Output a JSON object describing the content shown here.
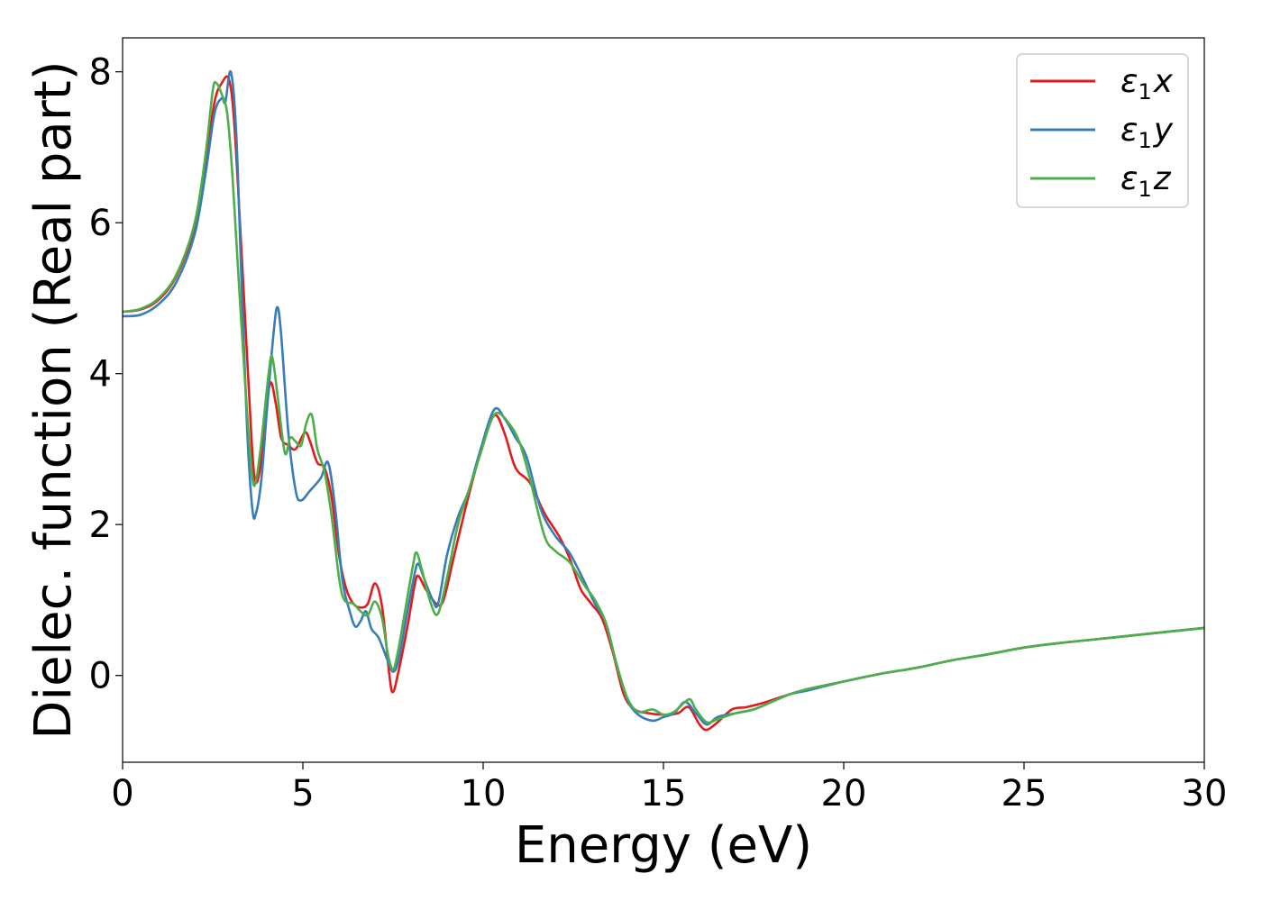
{
  "chart_data": {
    "type": "line",
    "xlabel": "Energy (eV)",
    "ylabel": "Dielec. function (Real part)",
    "xlim": [
      0,
      30
    ],
    "ylim": [
      -1.15,
      8.45
    ],
    "xticks": [
      0,
      5,
      10,
      15,
      20,
      25,
      30
    ],
    "yticks": [
      0,
      2,
      4,
      6,
      8
    ],
    "grid": false,
    "legend_position": "top-right",
    "series": [
      {
        "name": "ε1x",
        "legend_symbol": "ε",
        "legend_sub": "1",
        "legend_axis": "x",
        "color": "#e41a1c",
        "points": [
          [
            0,
            4.82
          ],
          [
            0.5,
            4.85
          ],
          [
            1,
            4.98
          ],
          [
            1.5,
            5.3
          ],
          [
            2,
            5.95
          ],
          [
            2.3,
            6.8
          ],
          [
            2.55,
            7.6
          ],
          [
            2.75,
            7.85
          ],
          [
            2.95,
            7.9
          ],
          [
            3.1,
            7.3
          ],
          [
            3.3,
            5.6
          ],
          [
            3.5,
            3.8
          ],
          [
            3.65,
            2.65
          ],
          [
            3.8,
            2.7
          ],
          [
            3.95,
            3.4
          ],
          [
            4.1,
            3.88
          ],
          [
            4.25,
            3.6
          ],
          [
            4.4,
            3.15
          ],
          [
            4.6,
            3.05
          ],
          [
            4.8,
            3.0
          ],
          [
            5.05,
            3.22
          ],
          [
            5.2,
            3.1
          ],
          [
            5.4,
            2.82
          ],
          [
            5.6,
            2.75
          ],
          [
            5.8,
            2.35
          ],
          [
            6.0,
            1.6
          ],
          [
            6.2,
            1.15
          ],
          [
            6.4,
            0.95
          ],
          [
            6.6,
            0.9
          ],
          [
            6.8,
            0.95
          ],
          [
            7.0,
            1.22
          ],
          [
            7.2,
            0.9
          ],
          [
            7.4,
            0.0
          ],
          [
            7.5,
            -0.22
          ],
          [
            7.65,
            0.05
          ],
          [
            7.9,
            0.65
          ],
          [
            8.1,
            1.2
          ],
          [
            8.2,
            1.32
          ],
          [
            8.4,
            1.15
          ],
          [
            8.7,
            0.95
          ],
          [
            8.9,
            1.0
          ],
          [
            9.2,
            1.6
          ],
          [
            9.5,
            2.2
          ],
          [
            9.8,
            2.75
          ],
          [
            10.1,
            3.25
          ],
          [
            10.35,
            3.45
          ],
          [
            10.6,
            3.2
          ],
          [
            10.9,
            2.75
          ],
          [
            11.3,
            2.55
          ],
          [
            11.7,
            2.15
          ],
          [
            12.1,
            1.85
          ],
          [
            12.4,
            1.55
          ],
          [
            12.7,
            1.15
          ],
          [
            13.0,
            0.95
          ],
          [
            13.3,
            0.75
          ],
          [
            13.6,
            0.3
          ],
          [
            13.9,
            -0.25
          ],
          [
            14.2,
            -0.45
          ],
          [
            14.6,
            -0.5
          ],
          [
            15.0,
            -0.52
          ],
          [
            15.4,
            -0.5
          ],
          [
            15.7,
            -0.42
          ],
          [
            16.0,
            -0.65
          ],
          [
            16.2,
            -0.72
          ],
          [
            16.5,
            -0.62
          ],
          [
            16.9,
            -0.45
          ],
          [
            17.3,
            -0.42
          ],
          [
            17.8,
            -0.36
          ],
          [
            18.3,
            -0.28
          ],
          [
            19.0,
            -0.18
          ],
          [
            20,
            -0.08
          ],
          [
            21,
            0.02
          ],
          [
            22,
            0.1
          ],
          [
            23,
            0.2
          ],
          [
            24,
            0.28
          ],
          [
            25,
            0.37
          ],
          [
            26,
            0.43
          ],
          [
            27,
            0.48
          ],
          [
            28,
            0.53
          ],
          [
            29,
            0.58
          ],
          [
            30,
            0.63
          ]
        ]
      },
      {
        "name": "ε1y",
        "legend_symbol": "ε",
        "legend_sub": "1",
        "legend_axis": "y",
        "color": "#377eb8",
        "points": [
          [
            0,
            4.76
          ],
          [
            0.5,
            4.78
          ],
          [
            1,
            4.92
          ],
          [
            1.5,
            5.22
          ],
          [
            2,
            5.85
          ],
          [
            2.3,
            6.65
          ],
          [
            2.55,
            7.45
          ],
          [
            2.75,
            7.65
          ],
          [
            2.85,
            7.6
          ],
          [
            3.0,
            8.0
          ],
          [
            3.15,
            7.2
          ],
          [
            3.3,
            5.2
          ],
          [
            3.45,
            3.3
          ],
          [
            3.6,
            2.2
          ],
          [
            3.7,
            2.15
          ],
          [
            3.85,
            2.6
          ],
          [
            4.0,
            3.5
          ],
          [
            4.2,
            4.6
          ],
          [
            4.3,
            4.88
          ],
          [
            4.4,
            4.5
          ],
          [
            4.6,
            3.2
          ],
          [
            4.8,
            2.45
          ],
          [
            4.95,
            2.32
          ],
          [
            5.2,
            2.45
          ],
          [
            5.5,
            2.62
          ],
          [
            5.7,
            2.82
          ],
          [
            5.9,
            2.2
          ],
          [
            6.1,
            1.25
          ],
          [
            6.3,
            0.85
          ],
          [
            6.45,
            0.65
          ],
          [
            6.6,
            0.72
          ],
          [
            6.75,
            0.85
          ],
          [
            6.9,
            0.62
          ],
          [
            7.1,
            0.5
          ],
          [
            7.35,
            0.2
          ],
          [
            7.5,
            0.05
          ],
          [
            7.65,
            0.2
          ],
          [
            7.9,
            0.85
          ],
          [
            8.1,
            1.35
          ],
          [
            8.2,
            1.48
          ],
          [
            8.35,
            1.3
          ],
          [
            8.6,
            1.0
          ],
          [
            8.75,
            0.95
          ],
          [
            9.0,
            1.6
          ],
          [
            9.3,
            2.1
          ],
          [
            9.6,
            2.45
          ],
          [
            9.9,
            2.95
          ],
          [
            10.3,
            3.52
          ],
          [
            10.6,
            3.4
          ],
          [
            10.9,
            3.15
          ],
          [
            11.2,
            2.9
          ],
          [
            11.6,
            2.2
          ],
          [
            12.0,
            1.85
          ],
          [
            12.4,
            1.62
          ],
          [
            12.8,
            1.25
          ],
          [
            13.1,
            0.95
          ],
          [
            13.4,
            0.7
          ],
          [
            13.7,
            0.15
          ],
          [
            14.0,
            -0.32
          ],
          [
            14.3,
            -0.52
          ],
          [
            14.7,
            -0.6
          ],
          [
            15.0,
            -0.55
          ],
          [
            15.3,
            -0.5
          ],
          [
            15.6,
            -0.35
          ],
          [
            15.9,
            -0.5
          ],
          [
            16.2,
            -0.65
          ],
          [
            16.5,
            -0.55
          ],
          [
            17.0,
            -0.5
          ],
          [
            17.5,
            -0.45
          ],
          [
            18.0,
            -0.35
          ],
          [
            18.5,
            -0.25
          ],
          [
            19,
            -0.2
          ],
          [
            20,
            -0.08
          ],
          [
            21,
            0.02
          ],
          [
            22,
            0.1
          ],
          [
            23,
            0.2
          ],
          [
            24,
            0.28
          ],
          [
            25,
            0.37
          ],
          [
            26,
            0.43
          ],
          [
            27,
            0.48
          ],
          [
            28,
            0.53
          ],
          [
            29,
            0.58
          ],
          [
            30,
            0.63
          ]
        ]
      },
      {
        "name": "ε1z",
        "legend_symbol": "ε",
        "legend_sub": "1",
        "legend_axis": "z",
        "color": "#4daf4a",
        "points": [
          [
            0,
            4.82
          ],
          [
            0.5,
            4.86
          ],
          [
            1,
            5.0
          ],
          [
            1.5,
            5.32
          ],
          [
            2,
            6.0
          ],
          [
            2.3,
            6.9
          ],
          [
            2.5,
            7.75
          ],
          [
            2.6,
            7.85
          ],
          [
            2.75,
            7.7
          ],
          [
            2.9,
            7.45
          ],
          [
            3.05,
            6.6
          ],
          [
            3.25,
            5.0
          ],
          [
            3.45,
            3.5
          ],
          [
            3.6,
            2.62
          ],
          [
            3.7,
            2.58
          ],
          [
            3.85,
            3.1
          ],
          [
            4.05,
            4.0
          ],
          [
            4.15,
            4.22
          ],
          [
            4.3,
            3.7
          ],
          [
            4.5,
            2.95
          ],
          [
            4.65,
            3.15
          ],
          [
            4.8,
            3.1
          ],
          [
            4.95,
            3.05
          ],
          [
            5.1,
            3.35
          ],
          [
            5.25,
            3.45
          ],
          [
            5.4,
            3.0
          ],
          [
            5.6,
            2.7
          ],
          [
            5.8,
            2.1
          ],
          [
            6.0,
            1.3
          ],
          [
            6.15,
            1.0
          ],
          [
            6.4,
            0.95
          ],
          [
            6.6,
            0.85
          ],
          [
            6.8,
            0.8
          ],
          [
            7.0,
            0.98
          ],
          [
            7.2,
            0.75
          ],
          [
            7.35,
            0.3
          ],
          [
            7.5,
            0.08
          ],
          [
            7.65,
            0.35
          ],
          [
            7.85,
            0.9
          ],
          [
            8.05,
            1.45
          ],
          [
            8.15,
            1.63
          ],
          [
            8.3,
            1.4
          ],
          [
            8.55,
            0.95
          ],
          [
            8.75,
            0.82
          ],
          [
            9.0,
            1.3
          ],
          [
            9.3,
            2.0
          ],
          [
            9.6,
            2.45
          ],
          [
            9.9,
            2.9
          ],
          [
            10.2,
            3.35
          ],
          [
            10.4,
            3.48
          ],
          [
            10.7,
            3.35
          ],
          [
            11.0,
            3.1
          ],
          [
            11.3,
            2.6
          ],
          [
            11.7,
            1.85
          ],
          [
            12.0,
            1.65
          ],
          [
            12.4,
            1.5
          ],
          [
            12.8,
            1.2
          ],
          [
            13.1,
            1.0
          ],
          [
            13.4,
            0.7
          ],
          [
            13.7,
            0.15
          ],
          [
            14.0,
            -0.3
          ],
          [
            14.3,
            -0.48
          ],
          [
            14.7,
            -0.45
          ],
          [
            15.0,
            -0.52
          ],
          [
            15.3,
            -0.48
          ],
          [
            15.6,
            -0.35
          ],
          [
            15.75,
            -0.32
          ],
          [
            15.9,
            -0.45
          ],
          [
            16.2,
            -0.62
          ],
          [
            16.5,
            -0.58
          ],
          [
            17.0,
            -0.5
          ],
          [
            17.5,
            -0.45
          ],
          [
            18.0,
            -0.35
          ],
          [
            18.5,
            -0.25
          ],
          [
            19,
            -0.18
          ],
          [
            20,
            -0.08
          ],
          [
            21,
            0.02
          ],
          [
            22,
            0.1
          ],
          [
            23,
            0.2
          ],
          [
            24,
            0.28
          ],
          [
            25,
            0.37
          ],
          [
            26,
            0.43
          ],
          [
            27,
            0.48
          ],
          [
            28,
            0.53
          ],
          [
            29,
            0.58
          ],
          [
            30,
            0.63
          ]
        ]
      }
    ]
  }
}
